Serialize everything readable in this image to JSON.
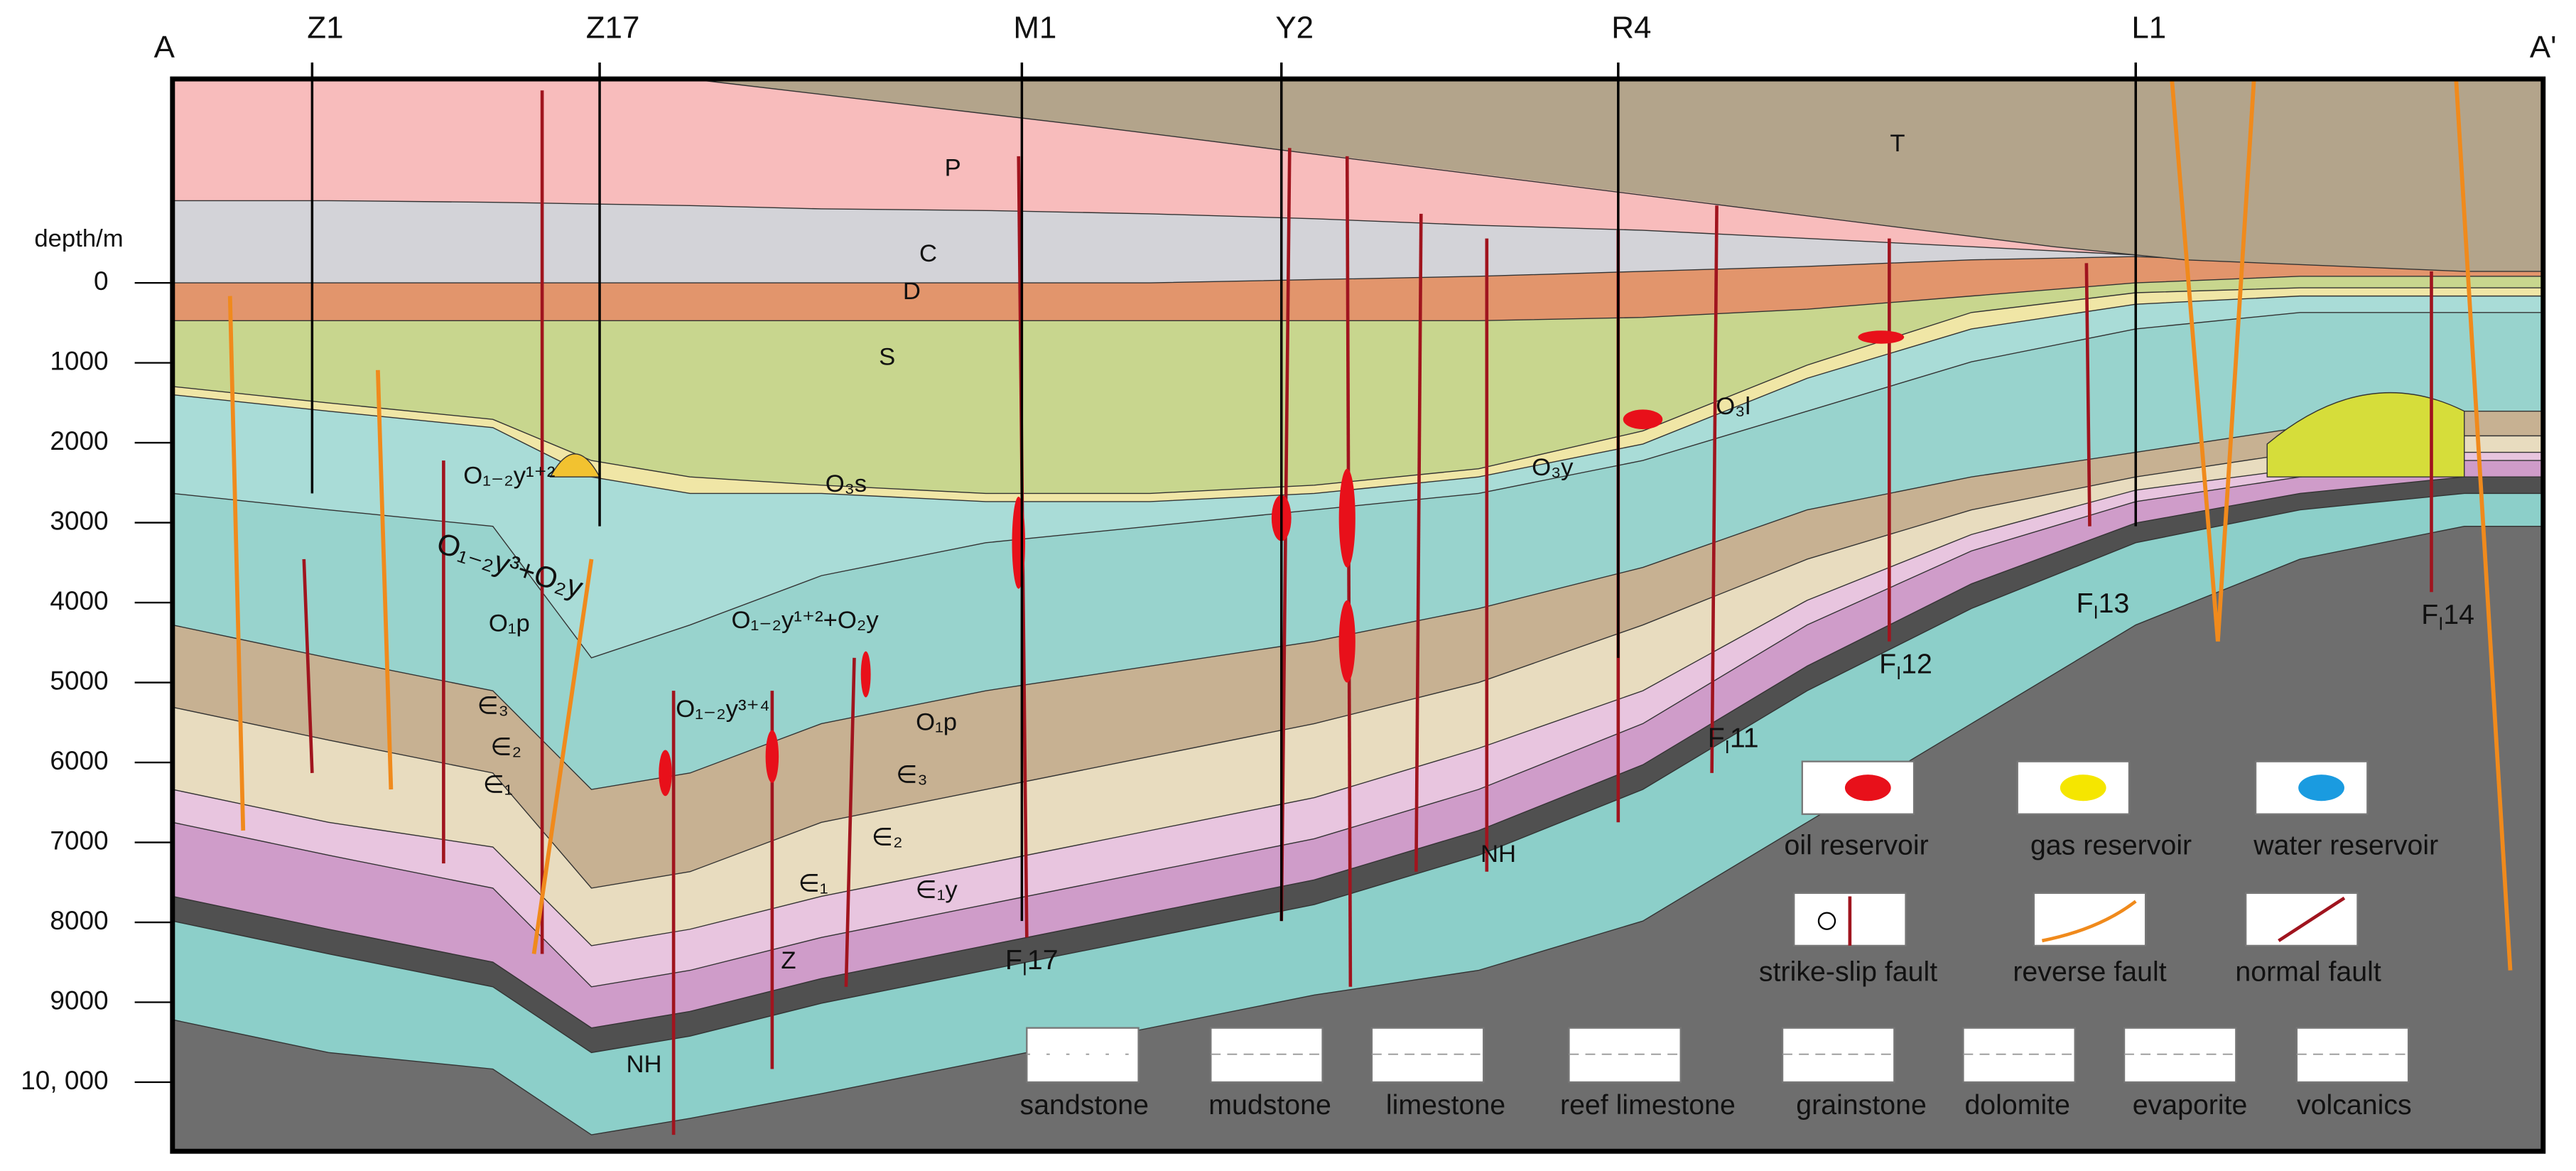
{
  "section": {
    "start": "A",
    "end": "A'"
  },
  "wells": [
    "Z1",
    "Z17",
    "M1",
    "Y2",
    "R4",
    "L1"
  ],
  "depth_axis": {
    "title": "depth/m",
    "ticks": [
      "0",
      "1000",
      "2000",
      "3000",
      "4000",
      "5000",
      "6000",
      "7000",
      "8000",
      "9000",
      "10, 000"
    ]
  },
  "strata": [
    "T",
    "P",
    "C",
    "D",
    "S",
    "O₃s",
    "O₃l",
    "O₃y",
    "O₁₋₂y¹⁺²",
    "O₁₋₂y³+O₂y",
    "O₁p",
    "∈₃",
    "∈₂",
    "∈₁",
    "O₁₋₂y¹⁺²+O₂y",
    "O₁₋₂y³⁺⁴",
    "O₁p",
    "∈₃",
    "∈₂",
    "∈₁",
    "∈₁y",
    "Z",
    "NH",
    "NH"
  ],
  "faults": [
    {
      "prefix": "F",
      "sub": "I",
      "number": "17"
    },
    {
      "prefix": "F",
      "sub": "I",
      "number": "11"
    },
    {
      "prefix": "F",
      "sub": "I",
      "number": "12"
    },
    {
      "prefix": "F",
      "sub": "I",
      "number": "13"
    },
    {
      "prefix": "F",
      "sub": "I",
      "number": "14"
    }
  ],
  "legend": {
    "reservoirs": [
      "oil reservoir",
      "gas reservoir",
      "water reservoir"
    ],
    "fault_types": [
      "strike-slip fault",
      "reverse fault",
      "normal fault"
    ],
    "lithology": [
      "sandstone",
      "mudstone",
      "limestone",
      "reef limestone",
      "grainstone",
      "dolomite",
      "evaporite",
      "volcanics"
    ]
  }
}
